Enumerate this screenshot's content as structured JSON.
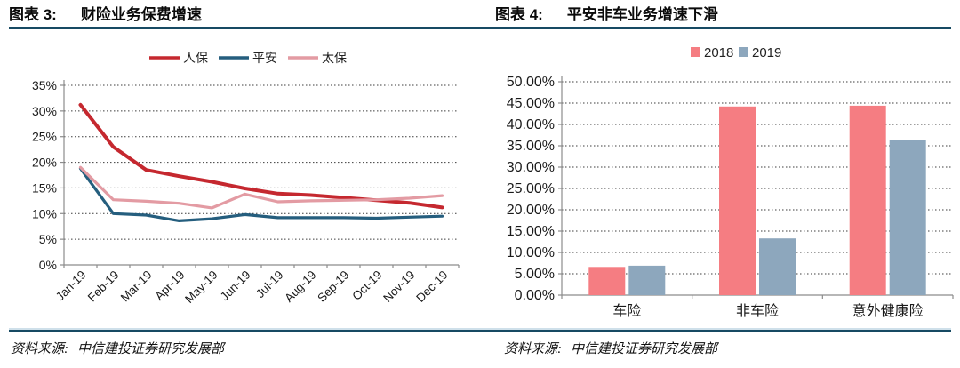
{
  "page": {
    "background": "#ffffff",
    "rule_color": "#174a63"
  },
  "figures": [
    {
      "label": "图表 3:",
      "title": "财险业务保费增速",
      "source_prefix": "资料来源:",
      "source": "中信建投证券研究发展部"
    },
    {
      "label": "图表 4:",
      "title": "平安非车业务增速下滑",
      "source_prefix": "资料来源:",
      "source": "中信建投证券研究发展部"
    }
  ],
  "chart_data": [
    {
      "type": "line",
      "title": "财险业务保费增速",
      "x": [
        "Jan-19",
        "Feb-19",
        "Mar-19",
        "Apr-19",
        "May-19",
        "Jun-19",
        "Jul-19",
        "Aug-19",
        "Sep-19",
        "Oct-19",
        "Nov-19",
        "Dec-19"
      ],
      "series": [
        {
          "name": "人保",
          "color": "#c5282f",
          "stroke_width": 4,
          "values": [
            31.2,
            23.0,
            18.5,
            17.3,
            16.2,
            14.9,
            13.9,
            13.6,
            13.1,
            12.6,
            12.1,
            11.2
          ]
        },
        {
          "name": "平安",
          "color": "#255e7e",
          "stroke_width": 3.2,
          "values": [
            18.8,
            10.0,
            9.7,
            8.6,
            9.0,
            9.8,
            9.2,
            9.2,
            9.2,
            9.1,
            9.3,
            9.5
          ]
        },
        {
          "name": "太保",
          "color": "#e39ba3",
          "stroke_width": 3.2,
          "values": [
            19.0,
            12.7,
            12.4,
            12.0,
            11.1,
            13.8,
            12.3,
            12.5,
            12.6,
            12.7,
            13.0,
            13.5
          ]
        }
      ],
      "ylim": [
        0,
        35
      ],
      "ytick_step": 5,
      "ytick_format": "percent0",
      "grid": true,
      "legend_position": "top",
      "xlabel": "",
      "ylabel": ""
    },
    {
      "type": "bar",
      "title": "平安非车业务增速下滑",
      "categories": [
        "车险",
        "非车险",
        "意外健康险"
      ],
      "series": [
        {
          "name": "2018",
          "color": "#f57d82",
          "values": [
            6.6,
            44.2,
            44.4
          ]
        },
        {
          "name": "2019",
          "color": "#8da7bd",
          "values": [
            6.9,
            13.3,
            36.4
          ]
        }
      ],
      "ylim": [
        0,
        50
      ],
      "ytick_step": 5,
      "ytick_format": "percent2",
      "grid": true,
      "legend_position": "top",
      "xlabel": "",
      "ylabel": ""
    }
  ]
}
